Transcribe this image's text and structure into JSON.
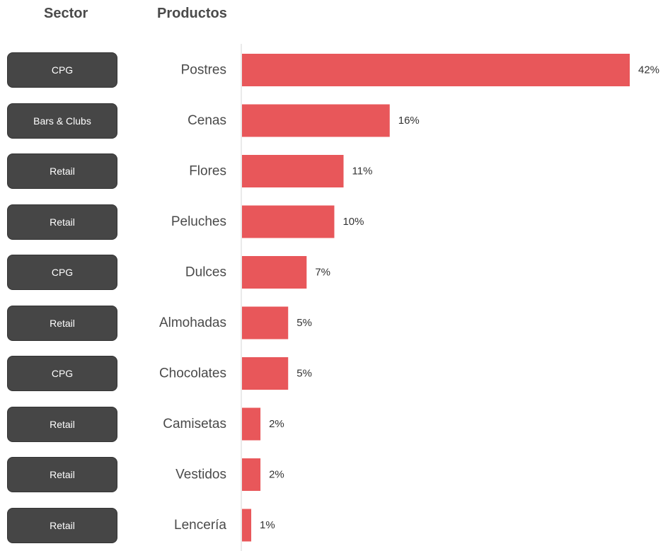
{
  "headers": {
    "sector": "Sector",
    "products": "Productos"
  },
  "chart_data": {
    "type": "bar",
    "orientation": "horizontal",
    "xlim": [
      0,
      42
    ],
    "bar_color": "#e8575a",
    "categories": [
      "Postres",
      "Cenas",
      "Flores",
      "Peluches",
      "Dulces",
      "Almohadas",
      "Chocolates",
      "Camisetas",
      "Vestidos",
      "Lencería"
    ],
    "values": [
      42,
      16,
      11,
      10,
      7,
      5,
      5,
      2,
      2,
      1
    ],
    "value_labels": [
      "42%",
      "16%",
      "11%",
      "10%",
      "7%",
      "5%",
      "5%",
      "2%",
      "2%",
      "1%"
    ],
    "sectors": [
      "CPG",
      "Bars & Clubs",
      "Retail",
      "Retail",
      "CPG",
      "Retail",
      "CPG",
      "Retail",
      "Retail",
      "Retail"
    ]
  }
}
